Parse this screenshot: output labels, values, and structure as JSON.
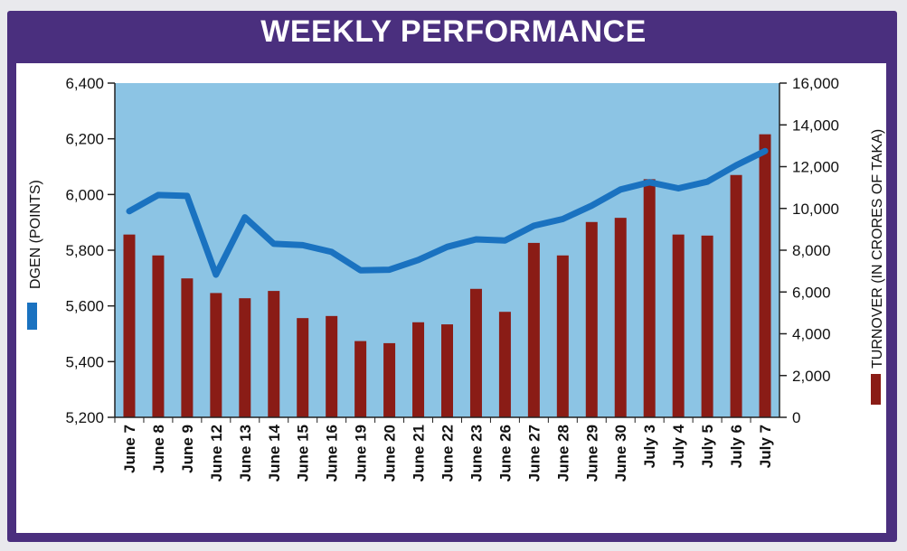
{
  "title": "WEEKLY PERFORMANCE",
  "chart_data": {
    "type": "bar+line",
    "title": "WEEKLY PERFORMANCE",
    "categories": [
      "June 7",
      "June 8",
      "June 9",
      "June 12",
      "June 13",
      "June 14",
      "June 15",
      "June 16",
      "June 19",
      "June 20",
      "June 21",
      "June 22",
      "June 23",
      "June 26",
      "June 27",
      "June 28",
      "June 29",
      "June 30",
      "July 3",
      "July 4",
      "July 5",
      "July 6",
      "July 7"
    ],
    "series": [
      {
        "name": "DGEN",
        "type": "line",
        "axis": "left",
        "color": "#1a72c0",
        "values": [
          5940,
          5998,
          5995,
          5712,
          5918,
          5823,
          5818,
          5794,
          5728,
          5730,
          5765,
          5812,
          5839,
          5835,
          5888,
          5912,
          5960,
          6018,
          6044,
          6022,
          6046,
          6105,
          6156
        ]
      },
      {
        "name": "Turnover",
        "type": "bar",
        "axis": "right",
        "color": "#8a1c16",
        "values": [
          8750,
          7750,
          6650,
          5950,
          5700,
          6050,
          4750,
          4850,
          3650,
          3550,
          4550,
          4450,
          6150,
          5050,
          8350,
          7750,
          9350,
          9550,
          11400,
          8750,
          8700,
          11600,
          13550
        ]
      }
    ],
    "y_left": {
      "label": "DGEN (POINTS)",
      "range": [
        5200,
        6400
      ],
      "ticks": [
        "5,200",
        "5,400",
        "5,600",
        "5,800",
        "6,000",
        "6,200",
        "6,400"
      ],
      "tick_values": [
        5200,
        5400,
        5600,
        5800,
        6000,
        6200,
        6400
      ]
    },
    "y_right": {
      "label": "TURNOVER (IN CRORES OF TAKA)",
      "range": [
        0,
        16000
      ],
      "ticks": [
        "0",
        "2,000",
        "4,000",
        "6,000",
        "8,000",
        "10,000",
        "12,000",
        "14,000",
        "16,000"
      ],
      "tick_values": [
        0,
        2000,
        4000,
        6000,
        8000,
        10000,
        12000,
        14000,
        16000
      ]
    },
    "plot_background": "#8cc4e4",
    "frame_color": "#4a2f7e",
    "grid": false
  }
}
